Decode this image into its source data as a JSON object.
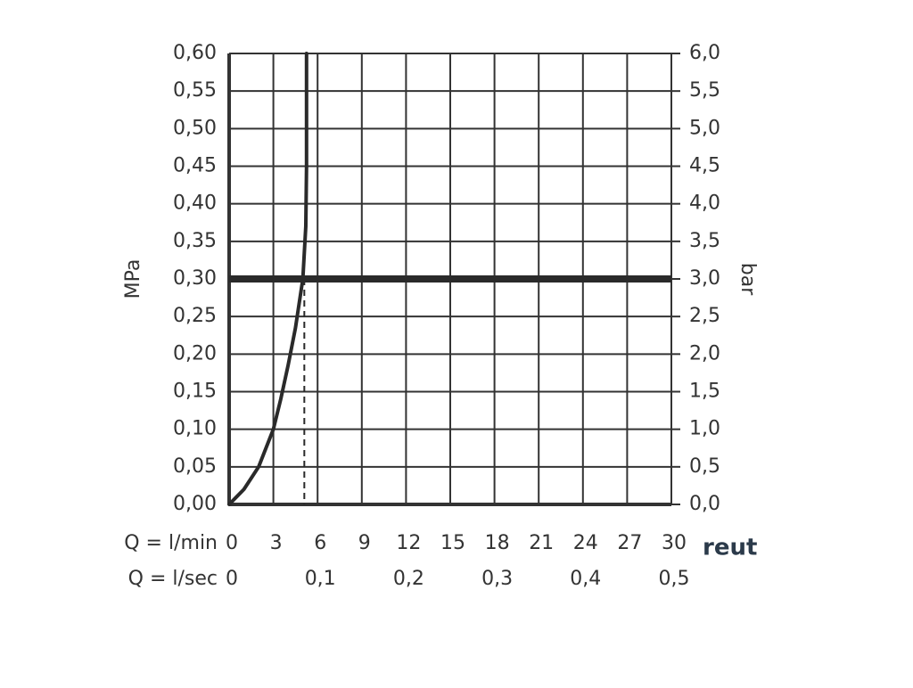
{
  "chart_data": {
    "type": "line",
    "y_label": "MPa",
    "y2_label": "bar",
    "x_label": "Q = l/min",
    "x2_label": "Q = l/sec",
    "watermark": "reut",
    "xlim": [
      0,
      30
    ],
    "xticks": [
      0,
      3,
      6,
      9,
      12,
      15,
      18,
      21,
      24,
      27,
      30
    ],
    "x2lim": [
      0,
      0.5
    ],
    "x2ticks": [
      0,
      {
        "value": 0.1,
        "label": "0,1"
      },
      {
        "value": 0.2,
        "label": "0,2"
      },
      {
        "value": 0.3,
        "label": "0,3"
      },
      {
        "value": 0.4,
        "label": "0,4"
      },
      {
        "value": 0.5,
        "label": "0,5"
      }
    ],
    "ylim": [
      0,
      0.6
    ],
    "yticks": [
      {
        "value": 0,
        "label": "0,00"
      },
      {
        "value": 0.05,
        "label": "0,05"
      },
      {
        "value": 0.1,
        "label": "0,10"
      },
      {
        "value": 0.15,
        "label": "0,15"
      },
      {
        "value": 0.2,
        "label": "0,20"
      },
      {
        "value": 0.25,
        "label": "0,25"
      },
      {
        "value": 0.3,
        "label": "0,30"
      },
      {
        "value": 0.35,
        "label": "0,35"
      },
      {
        "value": 0.4,
        "label": "0,40"
      },
      {
        "value": 0.45,
        "label": "0,45"
      },
      {
        "value": 0.5,
        "label": "0,50"
      },
      {
        "value": 0.55,
        "label": "0,55"
      },
      {
        "value": 0.6,
        "label": "0,60"
      }
    ],
    "y2lim": [
      0,
      6
    ],
    "y2ticks": [
      {
        "value": 0,
        "label": "0,0"
      },
      {
        "value": 0.5,
        "label": "0,5"
      },
      {
        "value": 1,
        "label": "1,0"
      },
      {
        "value": 1.5,
        "label": "1,5"
      },
      {
        "value": 2,
        "label": "2,0"
      },
      {
        "value": 2.5,
        "label": "2,5"
      },
      {
        "value": 3,
        "label": "3,0"
      },
      {
        "value": 3.5,
        "label": "3,5"
      },
      {
        "value": 4,
        "label": "4,0"
      },
      {
        "value": 4.5,
        "label": "4,5"
      },
      {
        "value": 5,
        "label": "5,0"
      },
      {
        "value": 5.5,
        "label": "5,5"
      },
      {
        "value": 6,
        "label": "6,0"
      }
    ],
    "grid": true,
    "color": "#2a2a2a",
    "x": [
      0,
      0.5,
      1,
      1.5,
      2,
      2.5,
      3,
      3.5,
      4,
      4.5,
      5,
      5.2,
      5.25,
      5.25
    ],
    "values": [
      0,
      0.01,
      0.02,
      0.035,
      0.05,
      0.075,
      0.1,
      0.14,
      0.185,
      0.235,
      0.3,
      0.37,
      0.45,
      0.6
    ],
    "reference_y": 0.3,
    "reference_x": 5.1
  }
}
